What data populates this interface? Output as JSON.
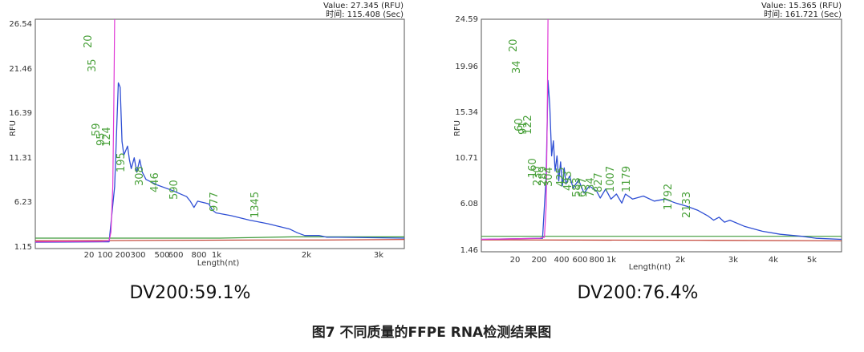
{
  "chart_data": [
    {
      "type": "line",
      "panel": "left",
      "corner_value": "Value:  27.345 (RFU)",
      "corner_time": "时间:  115.408 (Sec)",
      "ylabel": "RFU",
      "xlabel": "Length(nt)",
      "y_ticks": [
        "26.54",
        "21.46",
        "16.39",
        "11.31",
        "6.23",
        "1.15"
      ],
      "ylim": [
        1.15,
        26.54
      ],
      "x_ticks": [
        "20",
        "100",
        "200",
        "300",
        "500",
        "600",
        "800",
        "1k",
        "2k",
        "3k"
      ],
      "peak_labels": [
        "20",
        "35",
        "59",
        "95",
        "124",
        "195",
        "308",
        "446",
        "590",
        "977",
        "1345"
      ],
      "series": [
        {
          "values": [
            [
              0.0,
              1.9
            ],
            [
              0.18,
              1.95
            ],
            [
              0.2,
              2.0
            ],
            [
              0.205,
              3.0
            ],
            [
              0.21,
              8.0
            ],
            [
              0.213,
              18.0
            ],
            [
              0.215,
              26.54
            ]
          ]
        },
        {
          "values": [
            [
              0.0,
              1.85
            ],
            [
              0.2,
              1.9
            ],
            [
              0.215,
              8.0
            ],
            [
              0.225,
              19.5
            ],
            [
              0.23,
              19.0
            ],
            [
              0.235,
              13.0
            ],
            [
              0.24,
              11.5
            ],
            [
              0.25,
              12.5
            ],
            [
              0.255,
              11.0
            ],
            [
              0.26,
              10.0
            ],
            [
              0.268,
              11.2
            ],
            [
              0.275,
              9.6
            ],
            [
              0.283,
              11.0
            ],
            [
              0.29,
              9.6
            ],
            [
              0.3,
              8.8
            ],
            [
              0.33,
              8.2
            ],
            [
              0.37,
              7.6
            ],
            [
              0.41,
              6.9
            ],
            [
              0.42,
              6.4
            ],
            [
              0.43,
              5.7
            ],
            [
              0.44,
              6.4
            ],
            [
              0.45,
              6.3
            ],
            [
              0.47,
              6.1
            ],
            [
              0.48,
              5.4
            ],
            [
              0.49,
              5.1
            ],
            [
              0.53,
              4.8
            ],
            [
              0.58,
              4.3
            ],
            [
              0.63,
              3.9
            ],
            [
              0.66,
              3.6
            ],
            [
              0.69,
              3.3
            ],
            [
              0.71,
              2.9
            ],
            [
              0.73,
              2.6
            ],
            [
              0.77,
              2.6
            ],
            [
              0.79,
              2.4
            ],
            [
              0.82,
              2.4
            ],
            [
              1.0,
              2.3
            ]
          ]
        },
        {
          "values": [
            [
              0.0,
              2.3
            ],
            [
              0.5,
              2.3
            ],
            [
              0.7,
              2.45
            ],
            [
              1.0,
              2.45
            ]
          ]
        },
        {
          "values": [
            [
              0.0,
              2.0
            ],
            [
              0.6,
              2.1
            ],
            [
              0.78,
              2.1
            ],
            [
              1.0,
              2.15
            ]
          ]
        }
      ],
      "dv_label": "DV200:59.1%"
    },
    {
      "type": "line",
      "panel": "right",
      "corner_value": "Value:  15.365 (RFU)",
      "corner_time": "时间:  161.721 (Sec)",
      "ylabel": "RFU",
      "xlabel": "Length(nt)",
      "y_ticks": [
        "24.59",
        "19.96",
        "15.34",
        "10.71",
        "6.08",
        "1.46"
      ],
      "ylim": [
        1.46,
        24.59
      ],
      "x_ticks": [
        "20",
        "200",
        "400",
        "600",
        "800",
        "1k",
        "2k",
        "3k",
        "4k",
        "5k"
      ],
      "peak_labels": [
        "20",
        "34",
        "60",
        "91",
        "122",
        "160",
        "230",
        "289",
        "304",
        "425",
        "493",
        "583",
        "637",
        "734",
        "827",
        "1007",
        "1179",
        "1792",
        "2133"
      ],
      "series": [
        {
          "values": [
            [
              0.0,
              2.7
            ],
            [
              0.16,
              2.8
            ],
            [
              0.175,
              2.9
            ],
            [
              0.18,
              6.0
            ],
            [
              0.183,
              15.0
            ],
            [
              0.185,
              24.59
            ]
          ]
        },
        {
          "values": [
            [
              0.0,
              2.7
            ],
            [
              0.17,
              2.8
            ],
            [
              0.18,
              9.0
            ],
            [
              0.185,
              18.5
            ],
            [
              0.19,
              16.0
            ],
            [
              0.195,
              11.0
            ],
            [
              0.2,
              12.5
            ],
            [
              0.205,
              9.5
            ],
            [
              0.21,
              11.0
            ],
            [
              0.215,
              8.5
            ],
            [
              0.22,
              10.4
            ],
            [
              0.225,
              8.0
            ],
            [
              0.23,
              9.8
            ],
            [
              0.235,
              8.2
            ],
            [
              0.245,
              9.0
            ],
            [
              0.255,
              7.8
            ],
            [
              0.27,
              8.6
            ],
            [
              0.285,
              7.3
            ],
            [
              0.3,
              8.0
            ],
            [
              0.32,
              7.5
            ],
            [
              0.33,
              6.8
            ],
            [
              0.345,
              7.7
            ],
            [
              0.36,
              6.7
            ],
            [
              0.375,
              7.2
            ],
            [
              0.39,
              6.3
            ],
            [
              0.4,
              7.2
            ],
            [
              0.42,
              6.7
            ],
            [
              0.45,
              7.0
            ],
            [
              0.48,
              6.5
            ],
            [
              0.51,
              6.7
            ],
            [
              0.54,
              6.3
            ],
            [
              0.57,
              6.0
            ],
            [
              0.6,
              5.6
            ],
            [
              0.63,
              5.0
            ],
            [
              0.645,
              4.6
            ],
            [
              0.66,
              4.9
            ],
            [
              0.675,
              4.4
            ],
            [
              0.69,
              4.6
            ],
            [
              0.73,
              4.0
            ],
            [
              0.78,
              3.5
            ],
            [
              0.83,
              3.2
            ],
            [
              0.89,
              3.0
            ],
            [
              0.93,
              2.8
            ],
            [
              1.0,
              2.7
            ]
          ]
        },
        {
          "values": [
            [
              0.0,
              3.0
            ],
            [
              1.0,
              3.0
            ]
          ]
        },
        {
          "values": [
            [
              0.0,
              2.65
            ],
            [
              0.6,
              2.6
            ],
            [
              1.0,
              2.55
            ]
          ]
        }
      ],
      "dv_label": "DV200:76.4%"
    }
  ],
  "figure_caption": "图7  不同质量的FFPE RNA检测结果图",
  "colors": {
    "pink": "#e03ad6",
    "blue": "#2f4fd4",
    "green": "#3f9a3a",
    "red": "#c0392b",
    "label": "#4aa13b"
  }
}
